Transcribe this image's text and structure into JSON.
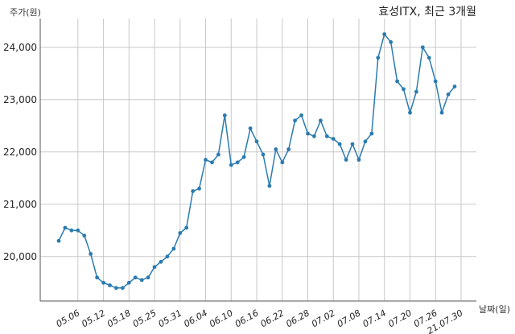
{
  "chart_data": {
    "type": "line",
    "title": "효성ITX, 최근 3개월",
    "ylabel": "주가(원)",
    "xlabel": "날짜(일)",
    "ylim": [
      19150,
      24550
    ],
    "yticks": [
      20000,
      21000,
      22000,
      23000,
      24000
    ],
    "ytick_labels": [
      "20,000",
      "21,000",
      "22,000",
      "23,000",
      "24,000"
    ],
    "xticks": [
      3,
      7,
      11,
      15,
      19,
      23,
      27,
      31,
      35,
      39,
      43,
      47,
      51,
      55,
      59,
      63
    ],
    "xtick_labels": [
      "05.06",
      "05.12",
      "05.18",
      "05.25",
      "05.31",
      "06.04",
      "06.10",
      "06.16",
      "06.22",
      "06.28",
      "07.02",
      "07.08",
      "07.14",
      "07.20",
      "07.26",
      "21.07.30"
    ],
    "xlim": [
      -2.9,
      65.4
    ],
    "grid": true,
    "series": [
      {
        "color": "#2b7bb0",
        "values": [
          20300,
          20550,
          20500,
          20500,
          20400,
          20050,
          19600,
          19500,
          19450,
          19400,
          19400,
          19500,
          19600,
          19550,
          19600,
          19800,
          19900,
          20000,
          20150,
          20450,
          20550,
          21250,
          21300,
          21850,
          21800,
          21950,
          22700,
          21750,
          21800,
          21900,
          22450,
          22200,
          21950,
          21350,
          22050,
          21800,
          22050,
          22600,
          22700,
          22350,
          22300,
          22600,
          22300,
          22250,
          22150,
          21850,
          22150,
          21850,
          22200,
          22350,
          23800,
          24250,
          24100,
          23350,
          23200,
          22750,
          23150,
          24000,
          23800,
          23350,
          22750,
          23100,
          23250
        ]
      }
    ]
  }
}
